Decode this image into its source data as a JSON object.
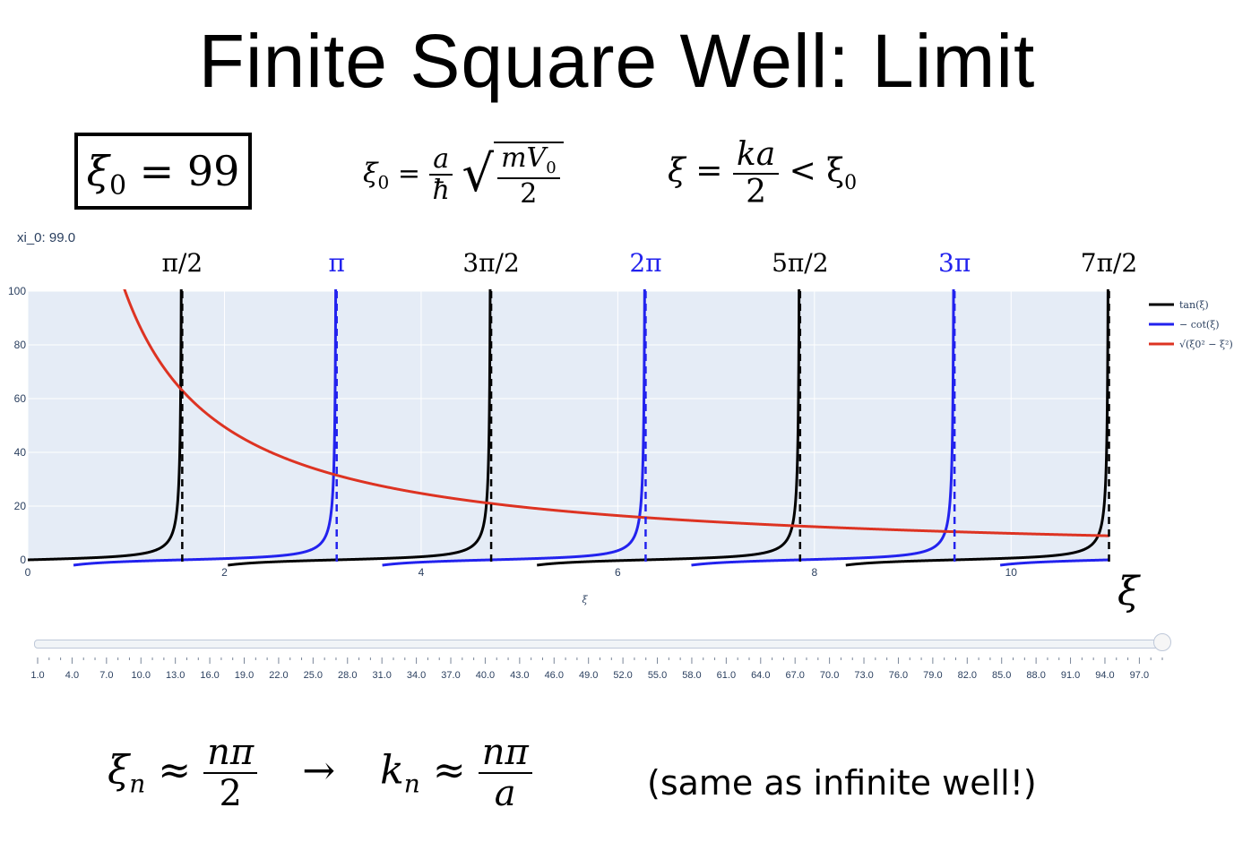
{
  "title": "Finite Square Well: Limit",
  "xi0_box": {
    "lhs": "ξ",
    "sub": "0",
    "rhs": "= 99"
  },
  "eq_xi0": {
    "lhs": "ξ",
    "sub": "0",
    "eq": "=",
    "frac_num": "a",
    "frac_den": "ħ",
    "sqrt_num": "mV",
    "sqrt_num_sub": "0",
    "sqrt_den": "2"
  },
  "eq_xi": {
    "lhs": "ξ",
    "eq": "=",
    "frac_num": "ka",
    "frac_den": "2",
    "tail": "< ξ",
    "tail_sub": "0"
  },
  "slider": {
    "label": "xi_0: 99.0",
    "min": 1,
    "max": 99,
    "value": 99,
    "tick_labels": [
      "1.0",
      "4.0",
      "7.0",
      "10.0",
      "13.0",
      "16.0",
      "19.0",
      "22.0",
      "25.0",
      "28.0",
      "31.0",
      "34.0",
      "37.0",
      "40.0",
      "43.0",
      "46.0",
      "49.0",
      "52.0",
      "55.0",
      "58.0",
      "61.0",
      "64.0",
      "67.0",
      "70.0",
      "73.0",
      "76.0",
      "79.0",
      "82.0",
      "85.0",
      "88.0",
      "91.0",
      "94.0",
      "97.0"
    ]
  },
  "chart_data": {
    "type": "line",
    "title": "",
    "xlabel": "ξ",
    "xlabel_big": "ξ",
    "ylabel": "",
    "xlim": [
      0,
      11
    ],
    "ylim": [
      0,
      100
    ],
    "x_ticks": [
      0,
      2,
      4,
      6,
      8,
      10
    ],
    "y_ticks": [
      0,
      20,
      40,
      60,
      80,
      100
    ],
    "grid": true,
    "legend_position": "right",
    "xi0": 99,
    "top_labels": [
      {
        "text": "π/2",
        "x": 1.5708,
        "color": "#000000"
      },
      {
        "text": "π",
        "x": 3.1416,
        "color": "#2222ee"
      },
      {
        "text": "3π/2",
        "x": 4.7124,
        "color": "#000000"
      },
      {
        "text": "2π",
        "x": 6.2832,
        "color": "#2222ee"
      },
      {
        "text": "5π/2",
        "x": 7.854,
        "color": "#000000"
      },
      {
        "text": "3π",
        "x": 9.4248,
        "color": "#2222ee"
      },
      {
        "text": "7π/2",
        "x": 10.9956,
        "color": "#000000"
      }
    ],
    "series": [
      {
        "name": "tan(ξ)",
        "color": "#000000",
        "function": "tan"
      },
      {
        "name": "− cot(ξ)",
        "color": "#2222ee",
        "function": "negcot"
      },
      {
        "name": "√(ξ0² − ξ²)",
        "color": "#dd3322",
        "function": "sqrt"
      }
    ],
    "asymptotes": [
      {
        "x": 1.5708,
        "color": "#000000"
      },
      {
        "x": 3.1416,
        "color": "#2222ee"
      },
      {
        "x": 4.7124,
        "color": "#000000"
      },
      {
        "x": 6.2832,
        "color": "#2222ee"
      },
      {
        "x": 7.854,
        "color": "#000000"
      },
      {
        "x": 9.4248,
        "color": "#2222ee"
      },
      {
        "x": 10.9956,
        "color": "#000000"
      }
    ]
  },
  "bottom": {
    "xin": "ξ",
    "xin_sub": "n",
    "approx": "≈",
    "num1": "nπ",
    "den1": "2",
    "arrow": "→",
    "kn": "k",
    "kn_sub": "n",
    "num2": "nπ",
    "den2": "a",
    "note": "(same as infinite well!)"
  }
}
